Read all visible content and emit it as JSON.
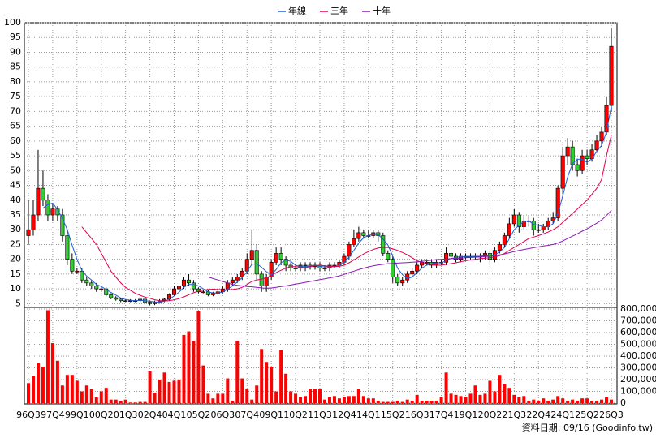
{
  "chart_data": {
    "type": "candlestick",
    "categories": [
      "96Q3",
      null,
      null,
      null,
      null,
      "97Q4",
      null,
      null,
      null,
      null,
      "99Q1",
      null,
      null,
      null,
      null,
      "00Q2",
      null,
      null,
      null,
      null,
      "01Q3",
      null,
      null,
      null,
      null,
      "02Q4",
      null,
      null,
      null,
      null,
      "04Q1",
      null,
      null,
      null,
      null,
      "05Q2",
      null,
      null,
      null,
      null,
      "06Q3",
      null,
      null,
      null,
      null,
      "07Q4",
      null,
      null,
      null,
      null,
      "09Q1",
      null,
      null,
      null,
      null,
      "10Q2",
      null,
      null,
      null,
      null,
      "11Q3",
      null,
      null,
      null,
      null,
      "12Q4",
      null,
      null,
      null,
      null,
      "14Q1",
      null,
      null,
      null,
      null,
      "15Q2",
      null,
      null,
      null,
      null,
      "16Q3",
      null,
      null,
      null,
      null,
      "17Q4",
      null,
      null,
      null,
      null,
      "19Q1",
      null,
      null,
      null,
      null,
      "20Q2",
      null,
      null,
      null,
      null,
      "21Q3",
      null,
      null,
      null,
      null,
      "22Q4",
      null,
      null,
      null,
      null,
      "24Q1",
      null,
      null,
      null,
      null,
      "25Q2",
      null,
      null,
      null,
      null,
      "26Q3"
    ],
    "ohlc": {
      "up_color": "#ff0000",
      "down_color": "#33cc33",
      "open": [
        28,
        30,
        35,
        44,
        40,
        35,
        37,
        35,
        28,
        20,
        16,
        16,
        13,
        12,
        11,
        10,
        10,
        8,
        7,
        6.5,
        6,
        6,
        6,
        6,
        6.5,
        5.5,
        5,
        5.5,
        6,
        6.5,
        8,
        10,
        11,
        13,
        12,
        10,
        9,
        9,
        8,
        8.5,
        9,
        10,
        12,
        13,
        14,
        16,
        20,
        23,
        15,
        11,
        14,
        19,
        22,
        20,
        18,
        17,
        17,
        18,
        18,
        17.5,
        18,
        17,
        17,
        18,
        18,
        19,
        21,
        25,
        27,
        29,
        28,
        28,
        29,
        28,
        22,
        20,
        14,
        12,
        13,
        15,
        16,
        18,
        19,
        19,
        18,
        19,
        19,
        22,
        21,
        20,
        21,
        21,
        21,
        21,
        21,
        22,
        20,
        23,
        25,
        28,
        32,
        35,
        31,
        33,
        33,
        30,
        30,
        31,
        33,
        34,
        44,
        55,
        58,
        52,
        50,
        55,
        54,
        57,
        60,
        63,
        72
      ],
      "high": [
        40,
        40,
        57,
        50,
        42,
        39,
        38,
        37,
        30,
        22,
        17,
        17,
        14,
        13,
        12,
        11,
        10.5,
        8.5,
        7.5,
        7,
        6.5,
        6.5,
        6.5,
        7,
        7,
        6,
        6,
        6.5,
        7,
        8.5,
        11,
        12,
        14,
        15,
        13,
        10.5,
        9.5,
        9.5,
        9,
        9.5,
        11,
        13,
        14,
        15,
        17,
        22,
        30,
        25,
        16,
        15,
        20,
        24,
        24,
        21,
        19,
        18,
        19,
        19,
        19,
        19,
        19,
        18,
        19,
        19,
        20,
        22,
        26,
        30,
        31,
        30,
        30,
        30,
        30,
        29,
        23,
        21,
        15,
        14,
        16,
        17,
        19,
        20,
        20,
        20,
        20,
        20,
        24,
        23,
        22,
        22,
        22,
        22,
        22,
        22,
        23,
        23,
        24,
        26,
        29,
        34,
        37,
        36,
        35,
        35,
        34,
        32,
        32,
        34,
        36,
        45,
        58,
        61,
        60,
        54,
        57,
        57,
        59,
        62,
        65,
        75,
        98
      ],
      "low": [
        25,
        28,
        33,
        38,
        33,
        33,
        33,
        26,
        18,
        15,
        15,
        12,
        11,
        10,
        9,
        9,
        7.5,
        6.5,
        6,
        5.5,
        5.5,
        5.5,
        5.5,
        5.5,
        5,
        4.5,
        4.5,
        5,
        5.5,
        6,
        7.5,
        9,
        10,
        11,
        9,
        8.5,
        8.5,
        7.5,
        7.5,
        8,
        8.5,
        9,
        11,
        12,
        13,
        15,
        18,
        13,
        9,
        9,
        13,
        18,
        18,
        16,
        16,
        16,
        16,
        16,
        16.5,
        16.5,
        16,
        16,
        16,
        17,
        17,
        18,
        20,
        24,
        26,
        27,
        27,
        27,
        26,
        21,
        19,
        12,
        11,
        11,
        12,
        14,
        15,
        17,
        18,
        17,
        17,
        18,
        18,
        20,
        19,
        19,
        20,
        20,
        20,
        19,
        20,
        18,
        19,
        22,
        24,
        27,
        31,
        29,
        30,
        31,
        28,
        29,
        29,
        30,
        32,
        33,
        42,
        52,
        50,
        48,
        49,
        52,
        53,
        56,
        58,
        62,
        70
      ],
      "close": [
        30,
        35,
        44,
        40,
        35,
        37,
        35,
        28,
        20,
        16,
        16,
        13,
        12,
        11,
        10,
        10,
        8,
        7,
        6.5,
        6,
        6,
        6,
        6,
        6.5,
        5.5,
        5,
        5.5,
        6,
        6.5,
        8,
        10,
        11,
        13,
        12,
        10,
        9,
        9,
        8,
        8.5,
        9,
        10,
        12,
        13,
        14,
        16,
        20,
        23,
        15,
        11,
        14,
        19,
        22,
        20,
        18,
        17,
        17,
        18,
        18,
        17.5,
        18,
        17,
        17,
        18,
        18,
        19,
        21,
        25,
        27,
        29,
        28,
        28,
        29,
        28,
        22,
        20,
        14,
        12,
        13,
        15,
        16,
        18,
        19,
        19,
        18,
        19,
        19,
        22,
        21,
        20,
        21,
        21,
        21,
        21,
        21,
        22,
        20,
        23,
        25,
        28,
        32,
        35,
        31,
        33,
        33,
        30,
        30,
        31,
        33,
        34,
        44,
        55,
        58,
        52,
        50,
        55,
        54,
        57,
        60,
        63,
        72,
        92
      ]
    },
    "series": [
      {
        "name": "年線",
        "color": "#1f5fd8",
        "values": [
          null,
          null,
          null,
          37.3,
          38.5,
          39,
          36.8,
          33.8,
          30,
          24.8,
          20,
          16.3,
          14.3,
          13,
          11.5,
          10.8,
          9.8,
          8.8,
          7.9,
          6.9,
          6.4,
          6.1,
          6,
          6.1,
          6,
          5.8,
          5.6,
          5.5,
          5.8,
          6.5,
          7.6,
          8.9,
          10.5,
          11.5,
          11.5,
          11,
          10,
          9,
          8.6,
          8.6,
          8.9,
          9.9,
          11,
          12.3,
          13.8,
          15.8,
          18.3,
          18.5,
          17.3,
          15.8,
          14.8,
          16.5,
          18.8,
          19.8,
          19.3,
          18,
          17.5,
          17.5,
          17.6,
          17.9,
          17.6,
          17.4,
          17.5,
          17.5,
          18,
          19,
          20.8,
          23,
          25.5,
          27.3,
          28,
          28.5,
          28.3,
          26.8,
          24.8,
          21,
          17,
          14.8,
          13.5,
          14,
          15.5,
          17,
          18,
          18.5,
          18.8,
          18.8,
          19.5,
          20.3,
          20.5,
          21,
          20.8,
          20.8,
          21,
          21,
          21.3,
          21,
          21.5,
          22.5,
          24,
          27,
          30,
          31.5,
          32.8,
          33,
          31.8,
          31.5,
          31,
          31,
          32,
          35.5,
          41.5,
          47.8,
          52.3,
          53.8,
          53.8,
          52.8,
          54,
          56.5,
          58.5,
          63,
          71.8
        ]
      },
      {
        "name": "三年",
        "color": "#e0004a",
        "values": [
          null,
          null,
          null,
          null,
          null,
          null,
          null,
          null,
          null,
          null,
          null,
          31,
          29,
          27,
          25,
          22,
          19,
          16,
          14,
          12,
          10.5,
          9.5,
          8.5,
          7.8,
          7.2,
          6.8,
          6.3,
          6,
          5.9,
          6,
          6.3,
          6.7,
          7.3,
          8,
          8.7,
          9.2,
          9.6,
          9.8,
          9.9,
          9.8,
          9.7,
          9.7,
          9.8,
          10,
          10.5,
          11.5,
          12.5,
          13,
          13.3,
          13.8,
          14.5,
          15.5,
          16.3,
          17,
          17.5,
          17.5,
          17.3,
          17.2,
          17.5,
          17.8,
          18,
          17.8,
          17.6,
          17.5,
          17.6,
          18,
          18.8,
          19.8,
          20.8,
          21.8,
          22.6,
          23.3,
          23.8,
          24,
          24,
          23.5,
          23,
          22.3,
          21.5,
          20.5,
          19.5,
          19,
          18.5,
          18.2,
          18,
          18,
          18.3,
          18.5,
          18.8,
          19.2,
          19.5,
          19.8,
          20,
          20.2,
          20.4,
          20.5,
          20.8,
          21.2,
          22,
          23,
          24,
          25,
          26,
          27,
          27.5,
          28,
          28.6,
          29.2,
          30,
          31,
          32.5,
          34,
          35.5,
          37,
          38.5,
          40,
          42,
          44,
          47,
          55,
          62
        ]
      },
      {
        "name": "十年",
        "color": "#8a1ab8",
        "values": [
          null,
          null,
          null,
          null,
          null,
          null,
          null,
          null,
          null,
          null,
          null,
          null,
          null,
          null,
          null,
          null,
          null,
          null,
          null,
          null,
          null,
          null,
          null,
          null,
          null,
          null,
          null,
          null,
          null,
          null,
          null,
          null,
          null,
          null,
          null,
          null,
          14,
          14,
          13.5,
          13,
          12.5,
          12,
          11.5,
          11.2,
          11,
          10.8,
          10.7,
          10.5,
          10.3,
          10.2,
          10.3,
          10.5,
          10.8,
          11,
          11.3,
          11.6,
          11.9,
          12.2,
          12.5,
          12.8,
          13.1,
          13.4,
          13.7,
          14,
          14.4,
          14.9,
          15.5,
          16,
          16.5,
          17,
          17.4,
          17.8,
          18.1,
          18.3,
          18.5,
          18.6,
          18.7,
          18.8,
          18.9,
          19,
          19.1,
          19.3,
          19.5,
          19.7,
          19.9,
          20,
          20.1,
          20.2,
          20.3,
          20.4,
          20.5,
          20.6,
          20.7,
          20.8,
          20.9,
          21,
          21.2,
          21.5,
          21.8,
          22.2,
          22.6,
          23,
          23.3,
          23.6,
          23.9,
          24.2,
          24.5,
          24.7,
          25,
          25.5,
          26.2,
          27,
          27.8,
          28.6,
          29.5,
          30.3,
          31.2,
          32.2,
          33.3,
          34.8,
          36.5
        ]
      }
    ],
    "ylim": [
      4,
      100
    ],
    "yticks": [
      5,
      10,
      15,
      20,
      25,
      30,
      35,
      40,
      45,
      50,
      55,
      60,
      65,
      70,
      75,
      80,
      85,
      90,
      95,
      100
    ],
    "volume": {
      "color": "#ff0000",
      "values": [
        170000,
        230000,
        340000,
        310000,
        790000,
        510000,
        360000,
        150000,
        240000,
        240000,
        190000,
        100000,
        150000,
        120000,
        50000,
        100000,
        130000,
        30000,
        30000,
        20000,
        30000,
        5000,
        5000,
        10000,
        10000,
        270000,
        90000,
        200000,
        260000,
        180000,
        190000,
        200000,
        580000,
        610000,
        530000,
        780000,
        320000,
        80000,
        40000,
        80000,
        80000,
        210000,
        20000,
        530000,
        210000,
        120000,
        30000,
        150000,
        460000,
        350000,
        310000,
        100000,
        450000,
        250000,
        100000,
        80000,
        50000,
        60000,
        120000,
        120000,
        120000,
        30000,
        50000,
        60000,
        40000,
        50000,
        60000,
        60000,
        120000,
        60000,
        40000,
        40000,
        20000,
        10000,
        10000,
        10000,
        20000,
        10000,
        30000,
        20000,
        70000,
        20000,
        20000,
        20000,
        20000,
        50000,
        260000,
        80000,
        70000,
        60000,
        50000,
        80000,
        150000,
        70000,
        80000,
        190000,
        100000,
        240000,
        160000,
        130000,
        70000,
        50000,
        60000,
        20000,
        30000,
        20000,
        40000,
        20000,
        30000,
        60000,
        40000,
        20000,
        30000,
        20000,
        40000,
        40000,
        20000,
        20000,
        30000,
        50000,
        30000
      ],
      "ylim": [
        0,
        800000
      ],
      "yticks": [
        0,
        {
          "value": 100000,
          "label": "100,000"
        },
        {
          "value": 200000,
          "label": "200,000"
        },
        {
          "value": 300000,
          "label": "300,000"
        },
        {
          "value": 400000,
          "label": "400,000"
        },
        {
          "value": 500000,
          "label": "500,000"
        },
        {
          "value": 600000,
          "label": "600,000"
        },
        {
          "value": 700000,
          "label": "700,000"
        },
        {
          "value": 800000,
          "label": "800,000"
        }
      ]
    },
    "grid": true,
    "legend": "top",
    "footer": "資料日期: 09/16  (Goodinfo.tw)"
  }
}
